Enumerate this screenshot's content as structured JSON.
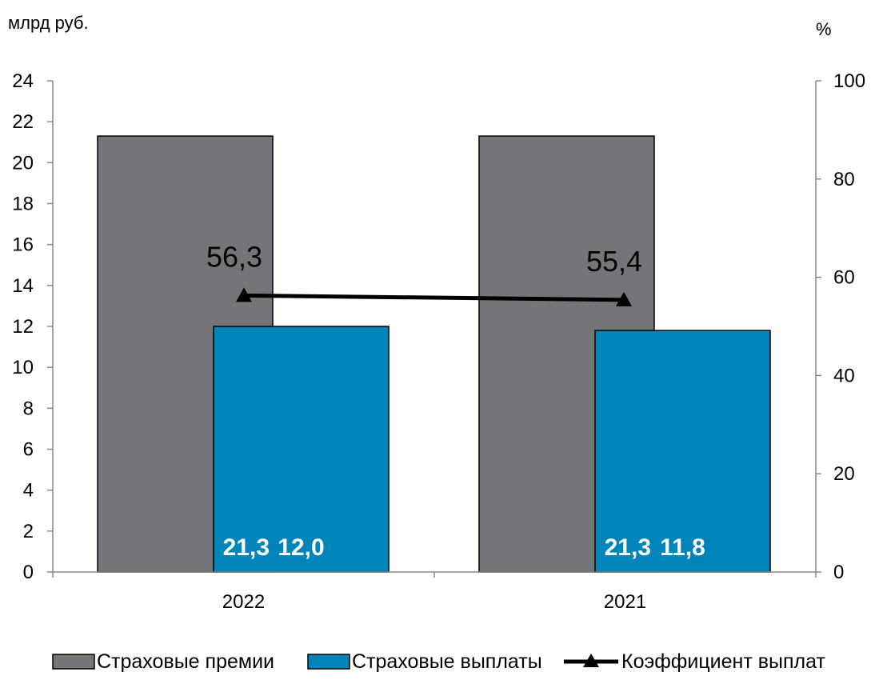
{
  "chart_data": {
    "type": "bar",
    "left_unit": "млрд руб.",
    "right_unit": "%",
    "categories": [
      "2022",
      "2021"
    ],
    "ylim": [
      0,
      24
    ],
    "yticks": [
      0,
      2,
      4,
      6,
      8,
      10,
      12,
      14,
      16,
      18,
      20,
      22,
      24
    ],
    "y2lim": [
      0,
      100
    ],
    "y2ticks": [
      0,
      20,
      40,
      60,
      80,
      100
    ],
    "series": [
      {
        "name": "Страховые премии",
        "kind": "bar",
        "axis": "left",
        "color": "#737579",
        "values": [
          21.3,
          21.3
        ],
        "labels": [
          "21,3",
          "21,3"
        ]
      },
      {
        "name": "Страховые выплаты",
        "kind": "bar",
        "axis": "left",
        "color": "#0085BA",
        "values": [
          12.0,
          11.8
        ],
        "labels": [
          "12,0",
          "11,8"
        ]
      },
      {
        "name": "Коэффициент выплат",
        "kind": "line",
        "axis": "right",
        "color": "#000000",
        "marker": "triangle",
        "values": [
          56.3,
          55.4
        ],
        "labels": [
          "56,3",
          "55,4"
        ]
      }
    ],
    "legend_position": "bottom",
    "grid": false
  }
}
